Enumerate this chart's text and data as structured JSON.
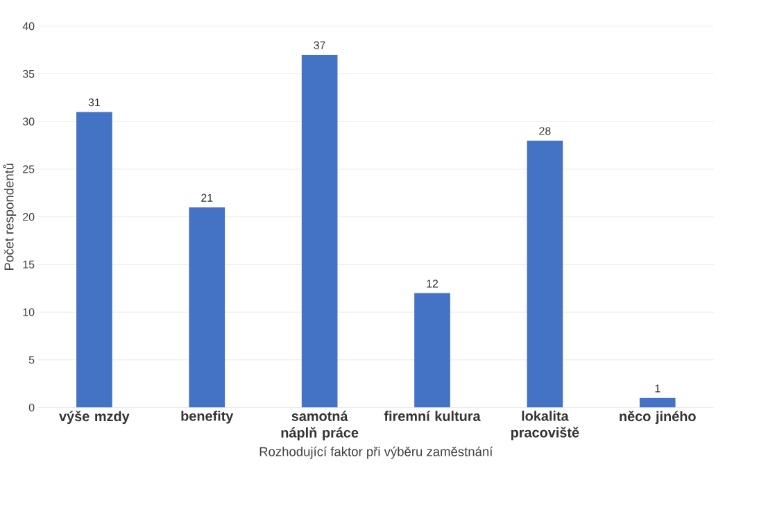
{
  "chart_data": {
    "type": "bar",
    "xlabel": "Rozhodující faktor při výběru zaměstnání",
    "ylabel": "Počet respondentů",
    "categories": [
      "výše mzdy",
      "benefity",
      "samotná náplň práce",
      "firemní kultura",
      "lokalita pracoviště",
      "něco jiného"
    ],
    "values": [
      31,
      21,
      37,
      12,
      28,
      1
    ],
    "color": "#4472c4",
    "ylim": [
      0,
      40
    ],
    "yticks": [
      0,
      5,
      10,
      15,
      20,
      25,
      30,
      35,
      40
    ],
    "grid": "y",
    "data_labels": true
  }
}
